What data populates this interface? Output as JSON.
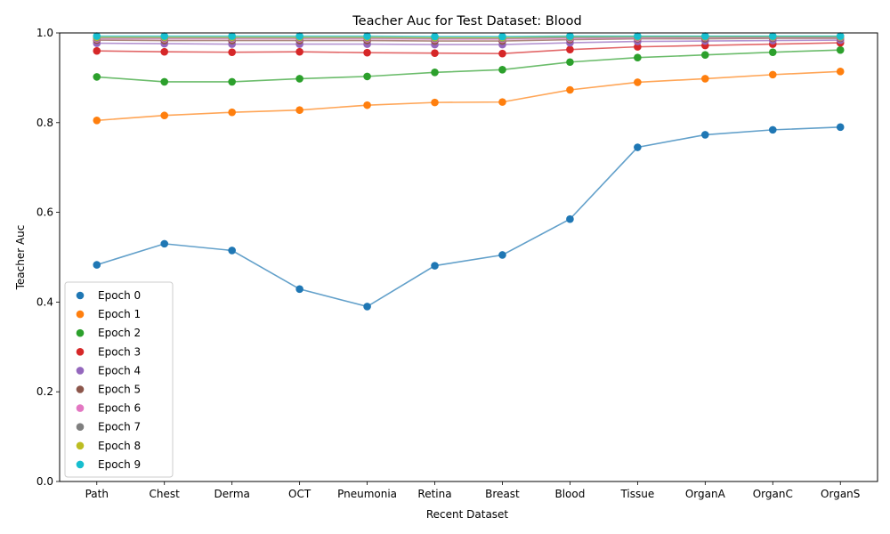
{
  "chart_data": {
    "type": "line",
    "title": "Teacher Auc for Test Dataset: Blood",
    "xlabel": "Recent Dataset",
    "ylabel": "Teacher Auc",
    "ylim": [
      0,
      1
    ],
    "yticks": [
      "0.0",
      "0.2",
      "0.4",
      "0.6",
      "0.8",
      "1.0"
    ],
    "categories": [
      "Path",
      "Chest",
      "Derma",
      "OCT",
      "Pneumonia",
      "Retina",
      "Breast",
      "Blood",
      "Tissue",
      "OrganA",
      "OrganC",
      "OrganS"
    ],
    "grid": false,
    "legend_position": "lower-left",
    "series": [
      {
        "name": "Epoch 0",
        "color": "#1f77b4",
        "values": [
          0.483,
          0.53,
          0.515,
          0.429,
          0.39,
          0.481,
          0.505,
          0.585,
          0.745,
          0.773,
          0.784,
          0.79
        ]
      },
      {
        "name": "Epoch 1",
        "color": "#ff7f0e",
        "values": [
          0.805,
          0.816,
          0.823,
          0.828,
          0.839,
          0.845,
          0.846,
          0.873,
          0.89,
          0.898,
          0.907,
          0.914
        ]
      },
      {
        "name": "Epoch 2",
        "color": "#2ca02c",
        "values": [
          0.902,
          0.891,
          0.891,
          0.898,
          0.903,
          0.912,
          0.918,
          0.935,
          0.945,
          0.951,
          0.957,
          0.962
        ]
      },
      {
        "name": "Epoch 3",
        "color": "#d62728",
        "values": [
          0.96,
          0.958,
          0.957,
          0.958,
          0.956,
          0.955,
          0.954,
          0.963,
          0.969,
          0.972,
          0.975,
          0.978
        ]
      },
      {
        "name": "Epoch 4",
        "color": "#9467bd",
        "values": [
          0.977,
          0.976,
          0.975,
          0.975,
          0.975,
          0.974,
          0.974,
          0.978,
          0.981,
          0.982,
          0.983,
          0.984
        ]
      },
      {
        "name": "Epoch 5",
        "color": "#8c564b",
        "values": [
          0.984,
          0.983,
          0.983,
          0.983,
          0.983,
          0.982,
          0.982,
          0.985,
          0.987,
          0.987,
          0.988,
          0.988
        ]
      },
      {
        "name": "Epoch 6",
        "color": "#e377c2",
        "values": [
          0.987,
          0.987,
          0.987,
          0.987,
          0.987,
          0.986,
          0.986,
          0.988,
          0.989,
          0.99,
          0.99,
          0.99
        ]
      },
      {
        "name": "Epoch 7",
        "color": "#7f7f7f",
        "values": [
          0.989,
          0.989,
          0.989,
          0.989,
          0.989,
          0.988,
          0.988,
          0.99,
          0.991,
          0.991,
          0.991,
          0.991
        ]
      },
      {
        "name": "Epoch 8",
        "color": "#bcbd22",
        "values": [
          0.991,
          0.991,
          0.991,
          0.991,
          0.991,
          0.99,
          0.99,
          0.992,
          0.992,
          0.992,
          0.992,
          0.992
        ]
      },
      {
        "name": "Epoch 9",
        "color": "#17becf",
        "values": [
          0.993,
          0.993,
          0.993,
          0.993,
          0.993,
          0.992,
          0.992,
          0.993,
          0.993,
          0.993,
          0.993,
          0.993
        ]
      }
    ]
  }
}
